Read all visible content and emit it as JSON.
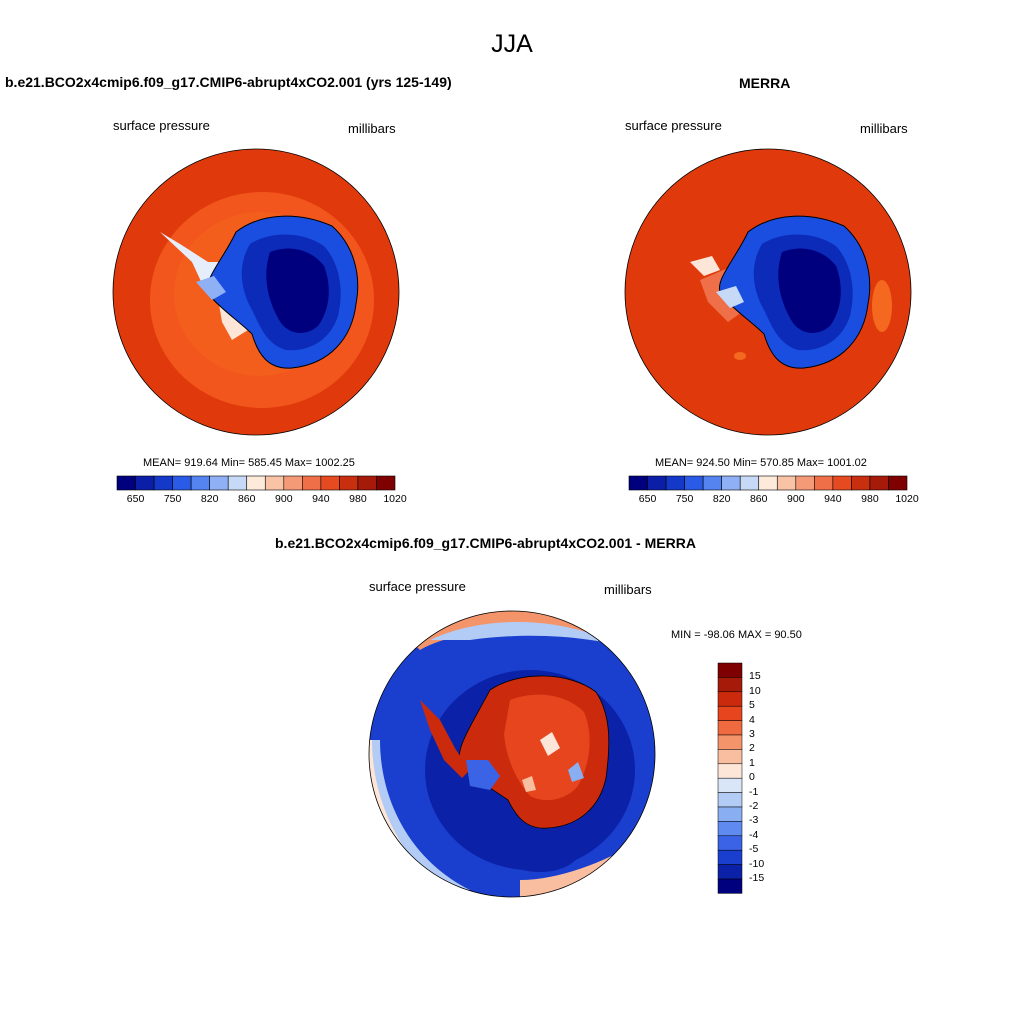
{
  "main_title": "JJA",
  "panels": [
    {
      "title": "b.e21.BCO2x4cmip6.f09_g17.CMIP6-abrupt4xCO2.001 (yrs 125-149)",
      "left_label": "surface pressure",
      "right_label": "millibars",
      "stats": "MEAN= 919.64  Min= 585.45  Max= 1002.25"
    },
    {
      "title": "MERRA",
      "left_label": "surface pressure",
      "right_label": "millibars",
      "stats": "MEAN= 924.50  Min= 570.85  Max= 1001.02"
    },
    {
      "title": "b.e21.BCO2x4cmip6.f09_g17.CMIP6-abrupt4xCO2.001 - MERRA",
      "left_label": "surface pressure",
      "right_label": "millibars",
      "stats": "MIN = -98.06 MAX =  90.50"
    }
  ],
  "colorbar_abs": {
    "tick_labels": [
      "650",
      "750",
      "820",
      "860",
      "900",
      "940",
      "980",
      "1020"
    ],
    "colors": [
      "#00007f",
      "#0a1ea8",
      "#1438c8",
      "#2a5be6",
      "#5584f0",
      "#8fb0f5",
      "#c6daf8",
      "#fdeadb",
      "#f9c3a6",
      "#f49a77",
      "#ef6f48",
      "#e64a21",
      "#c72f0f",
      "#a61a0a",
      "#7f0000"
    ]
  },
  "colorbar_diff": {
    "tick_labels": [
      "15",
      "10",
      "5",
      "4",
      "3",
      "2",
      "1",
      "0",
      "-1",
      "-2",
      "-3",
      "-4",
      "-5",
      "-10",
      "-15"
    ],
    "colors": [
      "#7f0000",
      "#a61a0a",
      "#cc2a0c",
      "#e6451d",
      "#ef6a3e",
      "#f4946b",
      "#f9bd9f",
      "#fde6d8",
      "#d9e6f8",
      "#b2ccf5",
      "#8aaef2",
      "#5f8af0",
      "#3a63e6",
      "#1a3fcf",
      "#0b22a8",
      "#00007f"
    ]
  }
}
